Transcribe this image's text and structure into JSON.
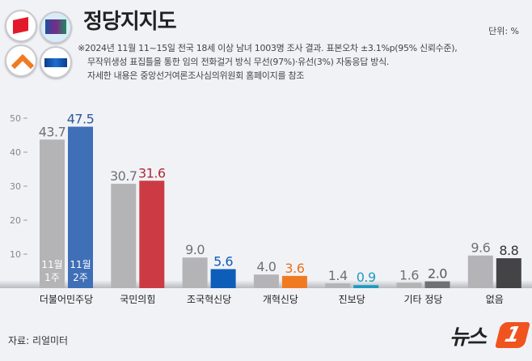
{
  "header": {
    "title": "정당지지도",
    "unit": "단위: %",
    "notes": [
      "※2024년 11월 11~15일 전국 18세 이상 남녀 1003명 조사 결과. 표본오차 ±3.1%p(95% 신뢰수준),",
      "무작위생성 표집틀을 통한 임의 전화걸거 방식 무선(97%)·유선(3%) 자동응답 방식.",
      "자세한 내용은 중앙선거여론조사심의위원회 홈페이지를 참조"
    ]
  },
  "footer": {
    "source": "자료: 리얼미터",
    "brand": "뉴스",
    "brand_badge": "1"
  },
  "logos": [
    "red-cube-icon",
    "purple-flag-icon",
    "orange-chevron-icon",
    "blue-banner-icon"
  ],
  "chart_data": {
    "type": "bar",
    "title": "정당지지도",
    "categories": [
      "더불어민주당",
      "국민의힘",
      "조국혁신당",
      "개혁신당",
      "진보당",
      "기타 정당",
      "없음"
    ],
    "series": [
      {
        "name": "11월 1주",
        "values": [
          43.7,
          30.7,
          9.0,
          4.0,
          1.4,
          1.6,
          9.6
        ]
      },
      {
        "name": "11월 2주",
        "values": [
          47.5,
          31.6,
          5.6,
          3.6,
          0.9,
          2.0,
          8.8
        ]
      }
    ],
    "series_labels": [
      [
        "11월",
        "1주"
      ],
      [
        "11월",
        "2주"
      ]
    ],
    "colors_week1": "#b4b4b6",
    "colors_week2": [
      "#3f6fb7",
      "#cc3b43",
      "#0d5eb8",
      "#f07a22",
      "#1d9bc0",
      "#707073",
      "#444446"
    ],
    "label_colors_week2": [
      "#2e5a9c",
      "#b02a36",
      "#0d5eb8",
      "#e8701c",
      "#1d9bc0",
      "#555",
      "#333"
    ],
    "yticks": [
      10,
      20,
      30,
      40,
      50
    ],
    "ylim": [
      0,
      50
    ],
    "grid": false
  }
}
